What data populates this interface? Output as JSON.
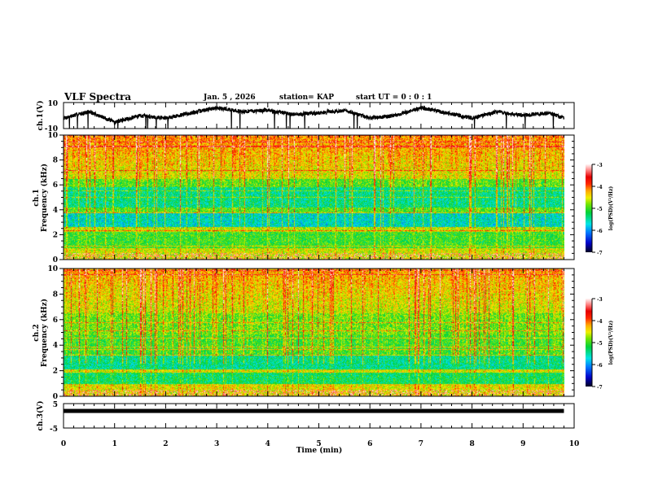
{
  "header": {
    "title": "VLF Spectra",
    "date": "Jan. 5 , 2026",
    "station": "station= KAP",
    "start_ut": "start UT =  0 : 0 : 1"
  },
  "chart_data": [
    {
      "type": "line",
      "name": "ch1 waveform",
      "ylabel": "ch.1(V)",
      "ylim": [
        -10,
        10
      ],
      "yticks": [
        "10",
        "-10"
      ],
      "xlim": [
        0,
        10
      ],
      "data_end_min": 9.8,
      "x": [
        0,
        0.5,
        1,
        1.5,
        2,
        2.5,
        3,
        3.5,
        4,
        4.5,
        5,
        5.5,
        6,
        6.5,
        7,
        7.5,
        8,
        8.5,
        9,
        9.5,
        9.8
      ],
      "y": [
        -2,
        3,
        -5,
        0,
        -2,
        2,
        6,
        3,
        4,
        1,
        2,
        4,
        -2,
        0,
        6,
        2,
        -2,
        3,
        0,
        2,
        -2
      ]
    },
    {
      "type": "heatmap",
      "name": "ch1 spectrogram",
      "ylabel": "ch.1\nFrequency (kHz)",
      "ylabel_line1": "ch.1",
      "ylabel_line2": "Frequency (kHz)",
      "ylim": [
        0,
        10
      ],
      "yticks": [
        "0",
        "2",
        "4",
        "6",
        "8",
        "10"
      ],
      "xlim": [
        0,
        10
      ],
      "colorbar": {
        "label": "log(PSD)(V²/Hz)",
        "range": [
          -7,
          -3
        ],
        "ticks": [
          "-3",
          "-4",
          "-5",
          "-6",
          "-7"
        ]
      },
      "seed": 11
    },
    {
      "type": "heatmap",
      "name": "ch2 spectrogram",
      "ylabel": "ch.2\nFrequency (kHz)",
      "ylabel_line1": "ch.2",
      "ylabel_line2": "Frequency (kHz)",
      "ylim": [
        0,
        10
      ],
      "yticks": [
        "0",
        "2",
        "4",
        "6",
        "8",
        "10"
      ],
      "xlim": [
        0,
        10
      ],
      "colorbar": {
        "label": "log(PSD)(V²/Hz)",
        "range": [
          -7,
          -3
        ],
        "ticks": [
          "-3",
          "-4",
          "-5",
          "-6",
          "-7"
        ]
      },
      "seed": 29
    },
    {
      "type": "line",
      "name": "ch3 waveform",
      "ylabel": "ch.3(V)",
      "ylim": [
        -5,
        5
      ],
      "yticks": [
        "5",
        "-5"
      ],
      "xlim": [
        0,
        10
      ],
      "value": 2,
      "data_end_min": 9.8,
      "xlabel": "Time  (min)",
      "xticks": [
        "0",
        "1",
        "2",
        "3",
        "4",
        "5",
        "6",
        "7",
        "8",
        "9",
        "10"
      ]
    }
  ]
}
